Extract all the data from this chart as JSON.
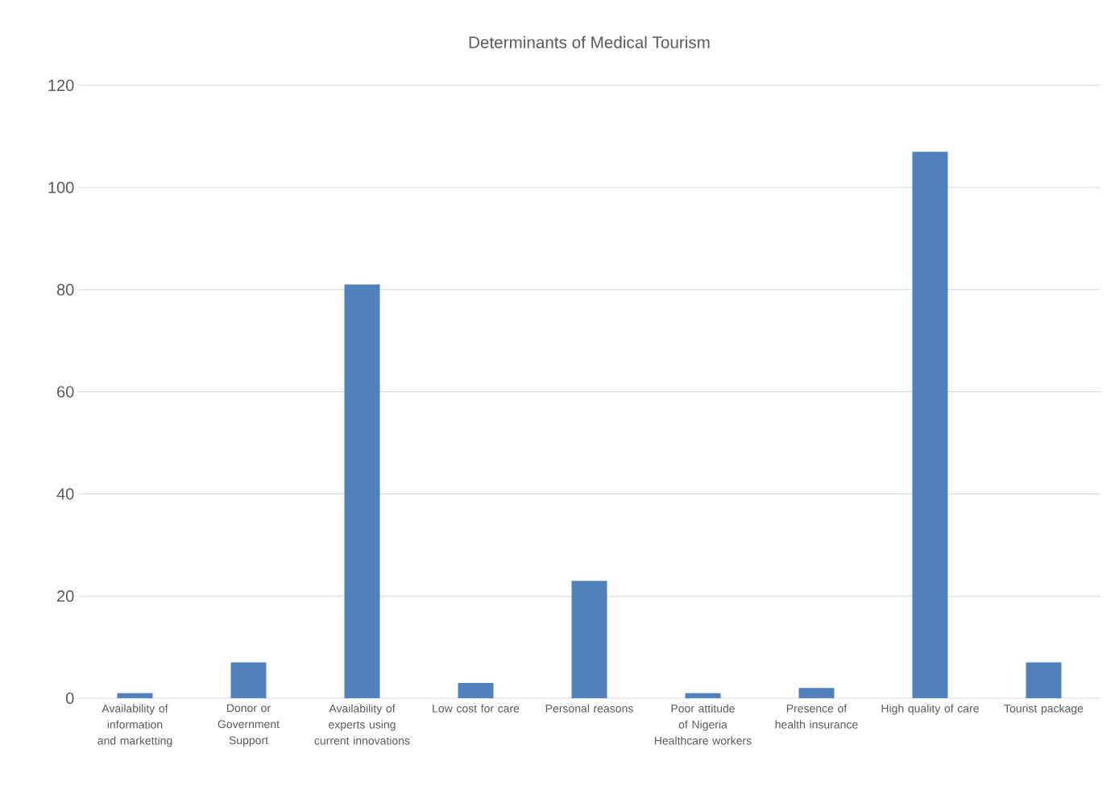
{
  "chart_data": {
    "type": "bar",
    "title": "Determinants of Medical Tourism",
    "categories": [
      "Availability of information and marketting",
      "Donor or Government Support",
      "Availability of experts using current innovations",
      "Low cost for care",
      "Personal reasons",
      "Poor attitude of Nigeria Healthcare workers",
      "Presence of health insurance",
      "High quality of care",
      "Tourist package"
    ],
    "values": [
      1,
      7,
      81,
      3,
      23,
      1,
      2,
      107,
      7
    ],
    "color": "#4f81bd",
    "ylim": [
      0,
      120
    ],
    "yticks": [
      0,
      20,
      40,
      60,
      80,
      100,
      120
    ],
    "grid": "y"
  }
}
